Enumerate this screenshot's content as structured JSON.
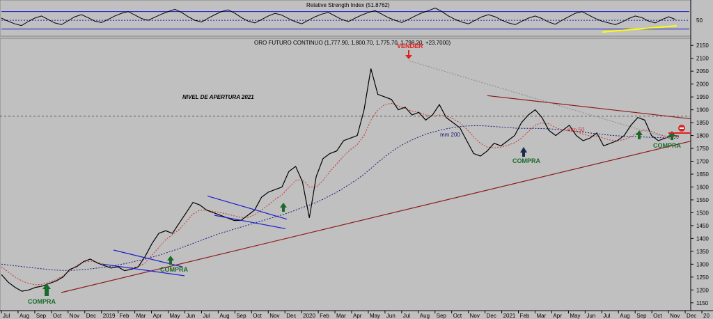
{
  "chart_data": [
    {
      "type": "line",
      "title": "Relative Strength Index (51.8762)",
      "y_ticks": [
        "50"
      ],
      "levels": [
        30,
        50,
        70
      ],
      "series": [
        {
          "values": [
            55,
            48,
            42,
            38,
            47,
            55,
            60,
            52,
            44,
            40,
            49,
            58,
            63,
            56,
            48,
            45,
            52,
            60,
            66,
            70,
            62,
            54,
            50,
            57,
            64,
            70,
            75,
            68,
            58,
            50,
            46,
            55,
            63,
            70,
            74,
            66,
            56,
            48,
            44,
            52,
            60,
            66,
            62,
            54,
            47,
            42,
            50,
            58,
            64,
            68,
            60,
            52,
            47,
            55,
            62,
            68,
            72,
            64,
            56,
            50,
            45,
            52,
            60,
            67,
            72,
            78,
            70,
            60,
            52,
            46,
            42,
            50,
            58,
            63,
            58,
            50,
            44,
            40,
            48,
            55,
            60,
            54,
            46,
            41,
            50,
            58,
            66,
            70,
            62,
            54,
            48,
            44,
            40,
            46,
            54,
            60,
            56,
            48,
            44,
            52,
            58,
            52
          ]
        }
      ]
    },
    {
      "type": "line",
      "title": "ORO FUTURO CONTINUO (1,777.90, 1,800.70, 1,775.70, 1,798.20, +23.7000)",
      "y_ticks": [
        "2150",
        "2100",
        "2050",
        "2000",
        "1950",
        "1900",
        "1850",
        "1800",
        "1750",
        "1700",
        "1650",
        "1600",
        "1550",
        "1500",
        "1450",
        "1400",
        "1350",
        "1300",
        "1250",
        "1200",
        "1150"
      ],
      "x_ticks": [
        "Jul",
        "Aug",
        "Sep",
        "Oct",
        "Nov",
        "Dec",
        "2019",
        "Feb",
        "Mar",
        "Apr",
        "May",
        "Jun",
        "Jul",
        "Aug",
        "Sep",
        "Oct",
        "Nov",
        "Dec",
        "2020",
        "Feb",
        "Mar",
        "Apr",
        "May",
        "Jun",
        "Jul",
        "Aug",
        "Sep",
        "Oct",
        "Nov",
        "Dec",
        "2021",
        "Feb",
        "Mar",
        "Apr",
        "May",
        "Jun",
        "Jul",
        "Aug",
        "Sep",
        "Oct",
        "Nov",
        "Dec",
        "20"
      ],
      "ylim": [
        1125,
        2175
      ],
      "series": [
        {
          "name": "price",
          "values": [
            1260,
            1230,
            1210,
            1195,
            1200,
            1210,
            1215,
            1225,
            1235,
            1250,
            1280,
            1290,
            1310,
            1320,
            1305,
            1295,
            1285,
            1290,
            1275,
            1280,
            1290,
            1330,
            1380,
            1420,
            1430,
            1420,
            1460,
            1500,
            1540,
            1530,
            1510,
            1500,
            1490,
            1480,
            1470,
            1470,
            1490,
            1510,
            1560,
            1580,
            1590,
            1600,
            1660,
            1680,
            1620,
            1480,
            1640,
            1710,
            1730,
            1740,
            1780,
            1790,
            1800,
            1900,
            2060,
            1960,
            1950,
            1940,
            1900,
            1910,
            1880,
            1890,
            1860,
            1880,
            1920,
            1870,
            1850,
            1830,
            1780,
            1730,
            1720,
            1740,
            1770,
            1760,
            1780,
            1800,
            1850,
            1880,
            1900,
            1870,
            1820,
            1800,
            1820,
            1840,
            1800,
            1780,
            1790,
            1810,
            1760,
            1770,
            1780,
            1800,
            1840,
            1870,
            1860,
            1800,
            1780,
            1790,
            1800,
            1798
          ]
        },
        {
          "name": "mm 50",
          "values": [
            1290,
            1270,
            1250,
            1235,
            1225,
            1220,
            1222,
            1230,
            1240,
            1255,
            1275,
            1295,
            1308,
            1312,
            1308,
            1300,
            1295,
            1292,
            1288,
            1286,
            1290,
            1305,
            1335,
            1365,
            1395,
            1415,
            1435,
            1465,
            1495,
            1510,
            1510,
            1505,
            1500,
            1495,
            1488,
            1482,
            1482,
            1492,
            1510,
            1530,
            1552,
            1570,
            1598,
            1625,
            1630,
            1600,
            1600,
            1625,
            1660,
            1690,
            1720,
            1745,
            1765,
            1800,
            1860,
            1900,
            1920,
            1925,
            1915,
            1905,
            1895,
            1890,
            1880,
            1875,
            1880,
            1875,
            1865,
            1850,
            1825,
            1795,
            1770,
            1755,
            1752,
            1755,
            1762,
            1772,
            1790,
            1815,
            1840,
            1850,
            1845,
            1830,
            1822,
            1820,
            1815,
            1805,
            1798,
            1798,
            1790,
            1782,
            1780,
            1784,
            1795,
            1812,
            1822,
            1815,
            1805,
            1798,
            1795,
            1793
          ]
        },
        {
          "name": "mm 200",
          "values": [
            1300,
            1297,
            1294,
            1291,
            1288,
            1285,
            1282,
            1279,
            1277,
            1276,
            1276,
            1277,
            1279,
            1282,
            1285,
            1288,
            1292,
            1297,
            1302,
            1308,
            1314,
            1320,
            1327,
            1335,
            1343,
            1352,
            1361,
            1371,
            1381,
            1391,
            1401,
            1411,
            1420,
            1428,
            1436,
            1444,
            1452,
            1460,
            1468,
            1476,
            1484,
            1492,
            1500,
            1510,
            1520,
            1530,
            1540,
            1552,
            1566,
            1580,
            1596,
            1613,
            1630,
            1650,
            1672,
            1695,
            1717,
            1737,
            1755,
            1770,
            1783,
            1795,
            1805,
            1813,
            1820,
            1826,
            1831,
            1835,
            1837,
            1838,
            1838,
            1837,
            1835,
            1833,
            1831,
            1829,
            1828,
            1828,
            1828,
            1827,
            1826,
            1824,
            1822,
            1819,
            1816,
            1813,
            1810,
            1807,
            1804,
            1801,
            1799,
            1797,
            1796,
            1795,
            1794,
            1793,
            1792,
            1791,
            1790,
            1789
          ]
        }
      ],
      "annotations": [
        "VENDER",
        "COMPRA",
        "COMPRA",
        "COMPRA",
        "COMPRA",
        "NIVEL DE APERTURA  2021",
        "mm 200",
        "mm 50"
      ]
    }
  ],
  "ui": {
    "colors": {
      "background": "#c0c0c0",
      "price": "#000000",
      "mm50": "#d03030",
      "mm200": "#1a1a80",
      "trend": "#8b1a1a",
      "buy": "#1a6b2a",
      "sell": "#e02020",
      "channel": "#1c1cd0",
      "rsi_ma": "#ffff00",
      "level": "#606060"
    },
    "icons": [
      "up-arrow-icon",
      "down-arrow-icon",
      "stop-icon"
    ]
  }
}
